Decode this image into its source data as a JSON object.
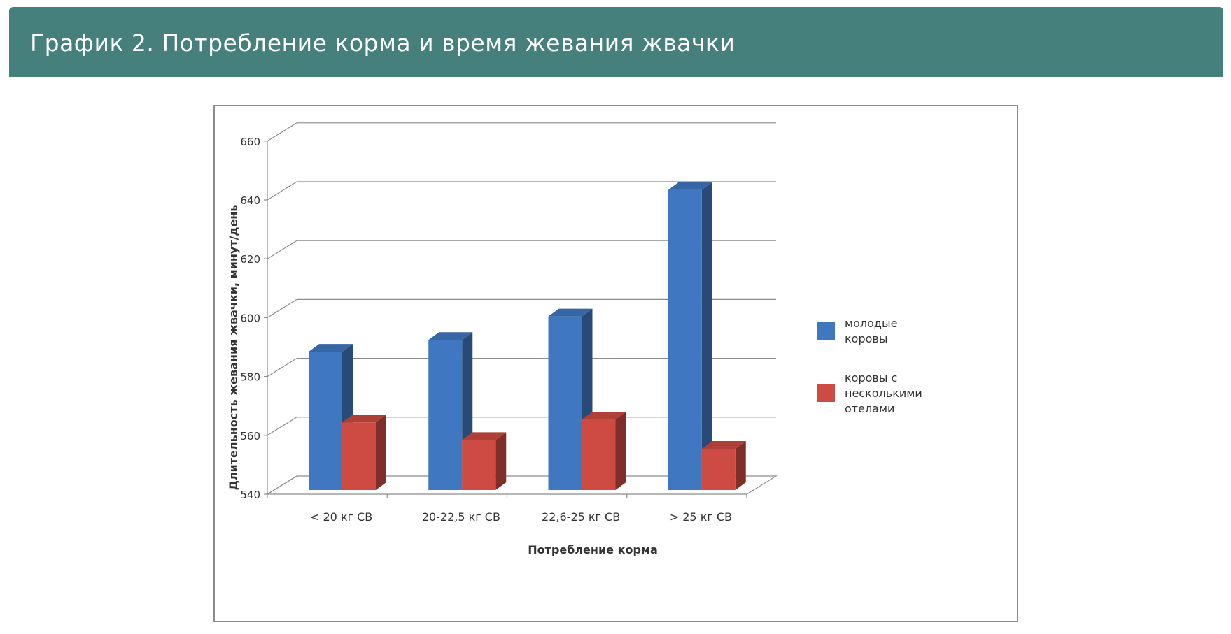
{
  "header": {
    "title": "График 2. Потребление корма и время жевания жвачки"
  },
  "chart_data": {
    "type": "bar",
    "title": "",
    "xlabel": "Потребление корма",
    "ylabel": "Длительность жевания жвачки, минут/день",
    "ylim": [
      540,
      660
    ],
    "yticks": [
      540,
      560,
      580,
      600,
      620,
      640,
      660
    ],
    "categories": [
      "< 20 кг СВ",
      "20-22,5 кг СВ",
      "22,6-25 кг СВ",
      "> 25 кг СВ"
    ],
    "series": [
      {
        "name": "молодые коровы",
        "color": "#3f78c0",
        "values": [
          587,
          591,
          599,
          642
        ]
      },
      {
        "name": "коровы с несколькими отелами",
        "color": "#cd4b42",
        "values": [
          563,
          557,
          564,
          554
        ]
      }
    ],
    "legend_position": "right",
    "legend_lines": [
      [
        "молодые",
        "коровы"
      ],
      [
        "коровы с",
        "несколькими",
        "отелами"
      ]
    ],
    "grid": true
  }
}
